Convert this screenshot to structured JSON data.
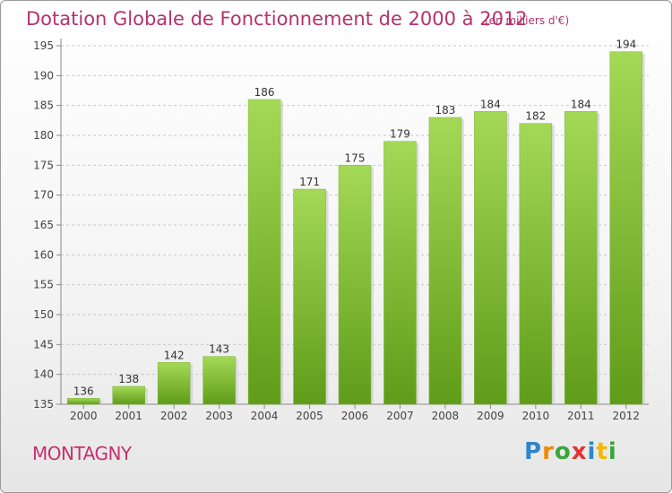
{
  "header": {
    "title": "Dotation Globale de Fonctionnement de 2000 à 2012",
    "unit": "(en milliers d'€)"
  },
  "footer": {
    "commune": "MONTAGNY",
    "logo_text": "Proxiti"
  },
  "colors": {
    "bar_light": "#9ed450",
    "bar_dark": "#5e9a18",
    "title": "#b5336b"
  },
  "chart_data": {
    "type": "bar",
    "title": "Dotation Globale de Fonctionnement de 2000 à 2012",
    "subtitle": "(en milliers d'€)",
    "categories": [
      "2000",
      "2001",
      "2002",
      "2003",
      "2004",
      "2005",
      "2006",
      "2007",
      "2008",
      "2009",
      "2010",
      "2011",
      "2012"
    ],
    "values": [
      136,
      138,
      142,
      143,
      186,
      171,
      175,
      179,
      183,
      184,
      182,
      184,
      194
    ],
    "ylim": [
      135,
      195
    ],
    "yticks": [
      135,
      140,
      145,
      150,
      155,
      160,
      165,
      170,
      175,
      180,
      185,
      190,
      195
    ],
    "grid": true
  }
}
